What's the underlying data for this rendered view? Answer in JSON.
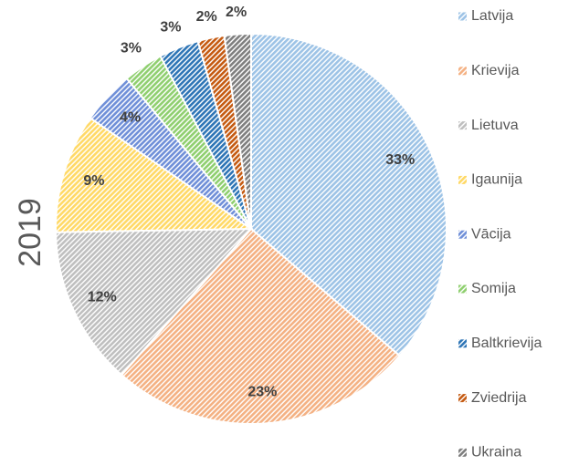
{
  "chart_data": {
    "type": "pie",
    "title": "2019",
    "categories": [
      "Latvija",
      "Krievija",
      "Lietuva",
      "Igaunija",
      "Vācija",
      "Somija",
      "Baltkrievija",
      "Zviedrija",
      "Ukraina"
    ],
    "values": [
      33,
      23,
      12,
      9,
      4,
      3,
      3,
      2,
      2
    ],
    "value_labels": [
      "33%",
      "23%",
      "12%",
      "9%",
      "4%",
      "3%",
      "3%",
      "2%",
      "2%"
    ],
    "colors": [
      "#9dc3e6",
      "#f4b183",
      "#bfbfbf",
      "#ffd966",
      "#6f8fd8",
      "#8fcf6f",
      "#2e75b6",
      "#c55a11",
      "#7f7f7f"
    ],
    "legend": "right"
  }
}
